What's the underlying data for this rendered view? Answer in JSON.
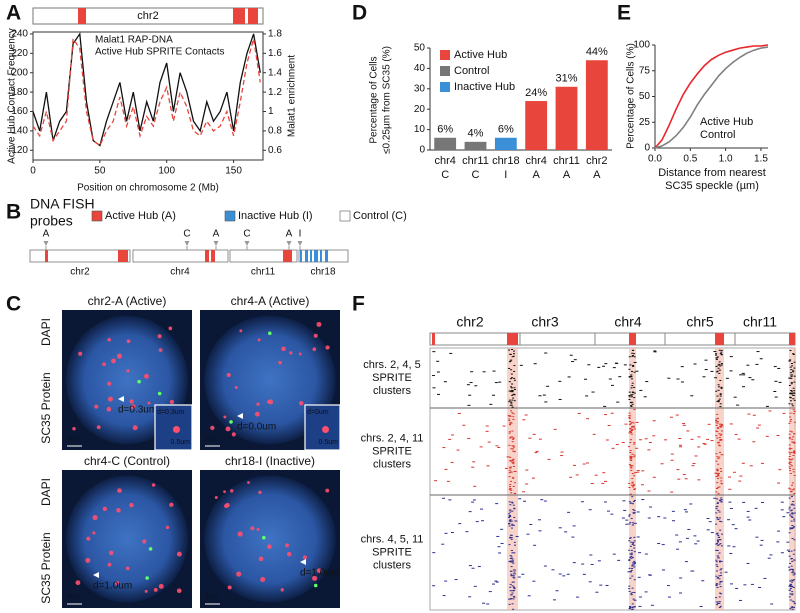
{
  "panel_labels": [
    "A",
    "B",
    "C",
    "D",
    "E",
    "F"
  ],
  "chart_data": [
    {
      "type": "line",
      "chromosome": "chr2",
      "xlabel": "Position on chromosome 2 (Mb)",
      "ylabel": "Active Hub Contact Frequency",
      "y2label": "Malat1 enrichment",
      "x": [
        0,
        5,
        10,
        15,
        20,
        25,
        30,
        35,
        40,
        45,
        50,
        55,
        60,
        65,
        70,
        75,
        80,
        85,
        90,
        95,
        100,
        105,
        110,
        115,
        120,
        125,
        130,
        135,
        140,
        145,
        150,
        155,
        160,
        165,
        170
      ],
      "xlim": [
        0,
        172
      ],
      "xticks": [
        0,
        50,
        100,
        150
      ],
      "ylim": [
        110,
        242
      ],
      "yticks": [
        120,
        140,
        160,
        180,
        200,
        220,
        240
      ],
      "y2lim": [
        0.5,
        1.82
      ],
      "y2ticks": [
        0.6,
        0.8,
        1,
        1.2,
        1.4,
        1.6,
        1.8
      ],
      "series": [
        {
          "name": "Malat1 RAP-DNA",
          "color": "#111111",
          "axis": "y2",
          "dashed": false,
          "values": [
            1.0,
            0.8,
            1.2,
            0.7,
            0.9,
            1.0,
            1.7,
            1.8,
            1.1,
            0.7,
            0.65,
            0.9,
            1.1,
            1.3,
            0.9,
            1.2,
            0.8,
            1.1,
            0.9,
            1.3,
            1.5,
            1.0,
            1.4,
            1.2,
            0.9,
            0.8,
            1.1,
            0.9,
            1.0,
            1.2,
            0.8,
            1.3,
            1.6,
            1.8,
            1.4
          ]
        },
        {
          "name": "Active Hub SPRITE Contacts",
          "color": "#e8453c",
          "axis": "y",
          "dashed": true,
          "values": [
            145,
            135,
            160,
            130,
            140,
            150,
            235,
            225,
            160,
            130,
            125,
            140,
            150,
            175,
            145,
            165,
            135,
            155,
            145,
            170,
            185,
            150,
            180,
            165,
            140,
            135,
            150,
            140,
            145,
            160,
            135,
            170,
            210,
            235,
            190
          ]
        }
      ]
    },
    {
      "type": "bar",
      "ylabel": [
        "Percentage of Cells",
        "≤0.25µm from SC35 (%)"
      ],
      "categories": [
        "chr4",
        "chr11",
        "chr18",
        "chr4",
        "chr11",
        "chr2"
      ],
      "category_codes": [
        "C",
        "C",
        "I",
        "A",
        "A",
        "A"
      ],
      "category_colors": [
        "#111111",
        "#111111",
        "#3b8fd6",
        "#e8453c",
        "#e8453c",
        "#e8453c"
      ],
      "values": [
        6,
        4,
        6,
        24,
        31,
        44
      ],
      "value_labels": [
        "6%",
        "4%",
        "6%",
        "24%",
        "31%",
        "44%"
      ],
      "colors": [
        "#777777",
        "#777777",
        "#3b8fd6",
        "#e8453c",
        "#e8453c",
        "#e8453c"
      ],
      "ylim": [
        0,
        50
      ],
      "yticks": [
        0,
        10,
        20,
        30,
        40,
        50
      ],
      "legend": [
        {
          "name": "Active Hub",
          "color": "#e8453c"
        },
        {
          "name": "Control",
          "color": "#777777"
        },
        {
          "name": "Inactive Hub",
          "color": "#3b8fd6"
        }
      ]
    },
    {
      "type": "line",
      "xlabel": [
        "Distance from nearest",
        "SC35 speckle (µm)"
      ],
      "ylabel": "Percentage of Cells (%)",
      "x": [
        0,
        0.1,
        0.2,
        0.3,
        0.4,
        0.5,
        0.6,
        0.7,
        0.8,
        0.9,
        1,
        1.1,
        1.2,
        1.3,
        1.4,
        1.5,
        1.6
      ],
      "xlim": [
        0,
        1.6
      ],
      "xticks": [
        {
          "value": 0,
          "label": "0.0"
        },
        0.5,
        {
          "value": 1,
          "label": "1.0"
        },
        1.5
      ],
      "ylim": [
        0,
        100
      ],
      "yticks": [
        0,
        25,
        50,
        75,
        100
      ],
      "series": [
        {
          "name": "Active Hub",
          "color": "#e8272c",
          "values": [
            0,
            8,
            22,
            38,
            52,
            63,
            72,
            80,
            86,
            90,
            93,
            95,
            97,
            98,
            99,
            99,
            100
          ]
        },
        {
          "name": "Control",
          "color": "#808080",
          "values": [
            0,
            2,
            6,
            12,
            20,
            30,
            42,
            52,
            61,
            70,
            77,
            83,
            88,
            92,
            95,
            97,
            98
          ]
        }
      ]
    }
  ],
  "fish_probes": {
    "title": [
      "DNA FISH",
      "probes"
    ],
    "legend": [
      {
        "name": "Active Hub (A)",
        "color": "#e8453c"
      },
      {
        "name": "Inactive Hub (I)",
        "color": "#3b8fd6"
      },
      {
        "name": "Control (C)",
        "color": "#ffffff"
      }
    ],
    "chromosomes": [
      "chr2",
      "chr4",
      "chr11",
      "chr18"
    ],
    "probes": [
      {
        "label": "A",
        "color": "#e8453c"
      },
      {
        "label": "C",
        "color": "#111111"
      },
      {
        "label": "A",
        "color": "#e8453c"
      },
      {
        "label": "C",
        "color": "#111111"
      },
      {
        "label": "A",
        "color": "#e8453c"
      },
      {
        "label": "I",
        "color": "#3b8fd6"
      }
    ]
  },
  "microscopy": {
    "row_labels": [
      "DAPI",
      "SC35 Protein"
    ],
    "panels": [
      {
        "title": "chr2-A (Active)",
        "distance": "d=0.3um",
        "scale": "2um",
        "inset": {
          "distance": "d=0.3um",
          "scale": "0.5um"
        }
      },
      {
        "title": "chr4-A (Active)",
        "distance": "d=0.0um",
        "scale": "2um",
        "inset": {
          "distance": "d=0um",
          "scale": "0.5um"
        }
      },
      {
        "title": "chr4-C (Control)",
        "distance": "d=1.0um",
        "scale": "2um"
      },
      {
        "title": "chr18-I (Inactive)",
        "distance": "d=1.0um",
        "scale": "2um"
      }
    ]
  },
  "sprite": {
    "chromosomes": [
      "chr2",
      "chr3",
      "chr4",
      "chr5",
      "chr11"
    ],
    "rows": [
      {
        "lines": [
          "chrs. 2, 4, 5",
          "SPRITE",
          "clusters"
        ],
        "color": "#111111"
      },
      {
        "lines": [
          "chrs. 2, 4, 11",
          "SPRITE",
          "clusters"
        ],
        "color": "#d8342c"
      },
      {
        "lines": [
          "chrs. 4, 5, 11",
          "SPRITE",
          "clusters"
        ],
        "color": "#2b2f8f"
      }
    ]
  }
}
